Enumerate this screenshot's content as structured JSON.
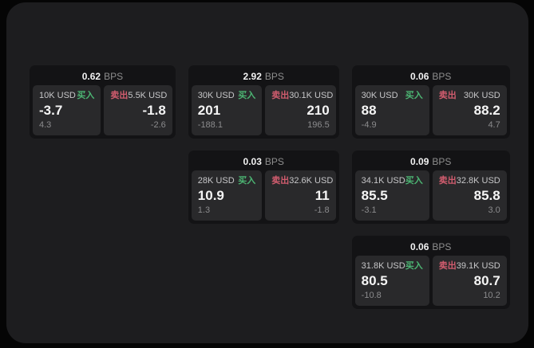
{
  "labels": {
    "bps_unit": "BPS",
    "buy": "买入",
    "sell": "卖出"
  },
  "colors": {
    "buy_accent": "#4cb573",
    "sell_accent": "#d05c6e",
    "surface": "#1d1d1f",
    "card_background": "#131315",
    "panel_background": "#29292b"
  },
  "cards": [
    {
      "bps": "0.62",
      "buy": {
        "amount": "10K USD",
        "price": "-3.7",
        "change": "4.3"
      },
      "sell": {
        "amount": "5.5K USD",
        "price": "-1.8",
        "change": "-2.6"
      }
    },
    {
      "bps": "2.92",
      "buy": {
        "amount": "30K USD",
        "price": "201",
        "change": "-188.1"
      },
      "sell": {
        "amount": "30.1K USD",
        "price": "210",
        "change": "196.5"
      }
    },
    {
      "bps": "0.06",
      "buy": {
        "amount": "30K USD",
        "price": "88",
        "change": "-4.9"
      },
      "sell": {
        "amount": "30K USD",
        "price": "88.2",
        "change": "4.7"
      }
    },
    {
      "bps": "0.03",
      "buy": {
        "amount": "28K USD",
        "price": "10.9",
        "change": "1.3"
      },
      "sell": {
        "amount": "32.6K USD",
        "price": "11",
        "change": "-1.8"
      }
    },
    {
      "bps": "0.09",
      "buy": {
        "amount": "34.1K USD",
        "price": "85.5",
        "change": "-3.1"
      },
      "sell": {
        "amount": "32.8K USD",
        "price": "85.8",
        "change": "3.0"
      }
    },
    {
      "bps": "0.06",
      "buy": {
        "amount": "31.8K USD",
        "price": "80.5",
        "change": "-10.8"
      },
      "sell": {
        "amount": "39.1K USD",
        "price": "80.7",
        "change": "10.2"
      }
    }
  ]
}
